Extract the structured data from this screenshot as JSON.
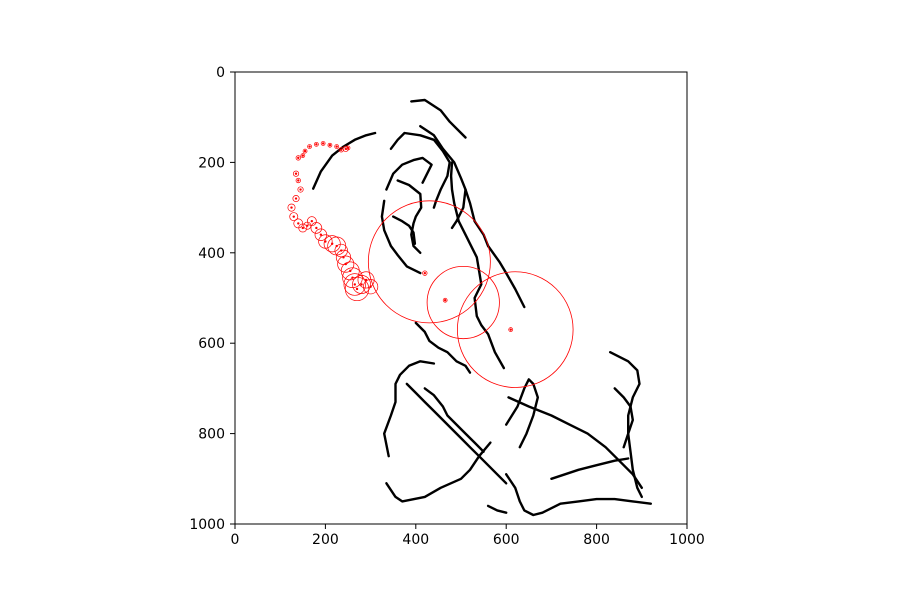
{
  "chart_data": {
    "type": "line",
    "title": "",
    "xlabel": "",
    "ylabel": "",
    "xlim": [
      0,
      1000
    ],
    "ylim": [
      1000,
      0
    ],
    "y_inverted": true,
    "grid": false,
    "x_ticks": [
      0,
      200,
      400,
      600,
      800,
      1000
    ],
    "y_ticks": [
      0,
      200,
      400,
      600,
      800,
      1000
    ],
    "x_tick_labels": [
      "0",
      "200",
      "400",
      "600",
      "800",
      "1000"
    ],
    "y_tick_labels": [
      "0",
      "200",
      "400",
      "600",
      "800",
      "1000"
    ],
    "series": [
      {
        "kind": "line",
        "color": "#000000",
        "segments": [
          [
            [
              173,
              258
            ],
            [
              190,
              220
            ],
            [
              215,
              185
            ],
            [
              240,
              165
            ],
            [
              265,
              150
            ],
            [
              290,
              140
            ],
            [
              310,
              135
            ]
          ],
          [
            [
              345,
              170
            ],
            [
              360,
              150
            ],
            [
              375,
              135
            ],
            [
              410,
              140
            ],
            [
              440,
              150
            ],
            [
              460,
              175
            ],
            [
              475,
              200
            ],
            [
              470,
              230
            ],
            [
              455,
              260
            ],
            [
              445,
              285
            ],
            [
              440,
              300
            ]
          ],
          [
            [
              390,
              65
            ],
            [
              420,
              62
            ],
            [
              455,
              85
            ],
            [
              475,
              110
            ],
            [
              500,
              135
            ],
            [
              510,
              145
            ]
          ],
          [
            [
              410,
              120
            ],
            [
              440,
              140
            ],
            [
              460,
              170
            ],
            [
              485,
              200
            ],
            [
              500,
              235
            ],
            [
              510,
              260
            ],
            [
              505,
              300
            ],
            [
              490,
              330
            ],
            [
              480,
              345
            ]
          ],
          [
            [
              335,
              260
            ],
            [
              350,
              225
            ],
            [
              370,
              205
            ],
            [
              395,
              195
            ],
            [
              415,
              190
            ],
            [
              435,
              205
            ],
            [
              425,
              225
            ],
            [
              415,
              245
            ]
          ],
          [
            [
              360,
              240
            ],
            [
              385,
              250
            ],
            [
              410,
              270
            ],
            [
              412,
              300
            ],
            [
              400,
              320
            ],
            [
              395,
              335
            ],
            [
              390,
              360
            ],
            [
              395,
              385
            ],
            [
              410,
              400
            ]
          ],
          [
            [
              330,
              285
            ],
            [
              325,
              320
            ],
            [
              330,
              350
            ],
            [
              345,
              385
            ],
            [
              360,
              405
            ],
            [
              380,
              430
            ],
            [
              410,
              445
            ]
          ],
          [
            [
              350,
              320
            ],
            [
              370,
              330
            ],
            [
              385,
              340
            ],
            [
              395,
              355
            ],
            [
              398,
              380
            ]
          ],
          [
            [
              480,
              200
            ],
            [
              478,
              230
            ],
            [
              480,
              260
            ],
            [
              485,
              290
            ],
            [
              495,
              330
            ],
            [
              510,
              360
            ],
            [
              525,
              390
            ],
            [
              535,
              410
            ],
            [
              540,
              440
            ]
          ],
          [
            [
              510,
              260
            ],
            [
              520,
              290
            ],
            [
              530,
              330
            ],
            [
              550,
              360
            ],
            [
              560,
              385
            ],
            [
              585,
              420
            ],
            [
              600,
              445
            ],
            [
              620,
              480
            ],
            [
              640,
              520
            ]
          ],
          [
            [
              540,
              440
            ],
            [
              545,
              470
            ],
            [
              530,
              500
            ],
            [
              535,
              540
            ],
            [
              545,
              560
            ],
            [
              560,
              580
            ],
            [
              575,
              620
            ],
            [
              595,
              655
            ]
          ],
          [
            [
              400,
              555
            ],
            [
              420,
              575
            ],
            [
              430,
              595
            ],
            [
              450,
              610
            ],
            [
              470,
              620
            ],
            [
              490,
              640
            ],
            [
              510,
              650
            ],
            [
              520,
              665
            ]
          ],
          [
            [
              340,
              850
            ],
            [
              330,
              800
            ],
            [
              345,
              760
            ],
            [
              355,
              730
            ],
            [
              355,
              690
            ],
            [
              365,
              670
            ],
            [
              385,
              650
            ],
            [
              410,
              640
            ],
            [
              440,
              645
            ]
          ],
          [
            [
              335,
              910
            ],
            [
              355,
              940
            ],
            [
              370,
              950
            ],
            [
              420,
              940
            ],
            [
              455,
              920
            ],
            [
              500,
              900
            ],
            [
              520,
              880
            ],
            [
              540,
              850
            ],
            [
              565,
              820
            ]
          ],
          [
            [
              600,
              780
            ],
            [
              625,
              740
            ],
            [
              640,
              700
            ],
            [
              650,
              680
            ],
            [
              660,
              690
            ],
            [
              670,
              720
            ],
            [
              660,
              760
            ],
            [
              645,
              800
            ],
            [
              630,
              830
            ]
          ],
          [
            [
              830,
              620
            ],
            [
              870,
              640
            ],
            [
              890,
              660
            ],
            [
              895,
              690
            ],
            [
              880,
              720
            ],
            [
              870,
              760
            ],
            [
              870,
              800
            ],
            [
              875,
              840
            ],
            [
              880,
              880
            ],
            [
              890,
              920
            ],
            [
              900,
              940
            ]
          ],
          [
            [
              605,
              720
            ],
            [
              650,
              740
            ],
            [
              700,
              760
            ],
            [
              740,
              780
            ],
            [
              780,
              800
            ],
            [
              820,
              830
            ],
            [
              850,
              860
            ],
            [
              880,
              890
            ],
            [
              900,
              920
            ]
          ],
          [
            [
              380,
              690
            ],
            [
              400,
              710
            ],
            [
              420,
              730
            ],
            [
              440,
              750
            ],
            [
              460,
              770
            ],
            [
              480,
              790
            ],
            [
              500,
              810
            ],
            [
              520,
              830
            ],
            [
              540,
              850
            ],
            [
              560,
              870
            ],
            [
              580,
              890
            ],
            [
              600,
              910
            ]
          ],
          [
            [
              420,
              700
            ],
            [
              440,
              715
            ],
            [
              460,
              740
            ],
            [
              470,
              760
            ],
            [
              490,
              780
            ],
            [
              510,
              800
            ],
            [
              530,
              820
            ],
            [
              550,
              840
            ]
          ],
          [
            [
              600,
              890
            ],
            [
              620,
              920
            ],
            [
              630,
              950
            ],
            [
              640,
              970
            ],
            [
              660,
              980
            ],
            [
              680,
              975
            ],
            [
              700,
              965
            ],
            [
              720,
              955
            ],
            [
              760,
              950
            ],
            [
              800,
              945
            ],
            [
              840,
              945
            ],
            [
              880,
              950
            ],
            [
              920,
              955
            ]
          ],
          [
            [
              560,
              960
            ],
            [
              580,
              970
            ],
            [
              600,
              975
            ]
          ],
          [
            [
              840,
              700
            ],
            [
              860,
              720
            ],
            [
              875,
              740
            ],
            [
              880,
              770
            ],
            [
              870,
              800
            ],
            [
              860,
              830
            ]
          ],
          [
            [
              700,
              900
            ],
            [
              730,
              890
            ],
            [
              760,
              880
            ],
            [
              800,
              870
            ],
            [
              840,
              860
            ],
            [
              870,
              855
            ]
          ]
        ]
      },
      {
        "kind": "circles",
        "color": "#ff0000",
        "points": [
          [
            135,
            225
          ],
          [
            140,
            190
          ],
          [
            150,
            185
          ],
          [
            155,
            175
          ],
          [
            165,
            165
          ],
          [
            180,
            160
          ],
          [
            195,
            158
          ],
          [
            210,
            162
          ],
          [
            225,
            165
          ],
          [
            235,
            172
          ],
          [
            245,
            170
          ],
          [
            250,
            168
          ],
          [
            140,
            240
          ],
          [
            145,
            260
          ],
          [
            135,
            280
          ],
          [
            125,
            300
          ],
          [
            130,
            320
          ],
          [
            140,
            335
          ],
          [
            150,
            345
          ],
          [
            160,
            340
          ],
          [
            170,
            330
          ],
          [
            180,
            345
          ],
          [
            190,
            360
          ],
          [
            200,
            375
          ],
          [
            215,
            380
          ],
          [
            225,
            385
          ],
          [
            235,
            395
          ],
          [
            240,
            410
          ],
          [
            245,
            425
          ],
          [
            255,
            440
          ],
          [
            260,
            455
          ],
          [
            265,
            470
          ],
          [
            270,
            480
          ],
          [
            280,
            470
          ],
          [
            290,
            460
          ],
          [
            300,
            475
          ],
          [
            420,
            445
          ],
          [
            465,
            505
          ],
          [
            610,
            570
          ]
        ],
        "radii": [
          6,
          5,
          4,
          4,
          4,
          4,
          4,
          4,
          4,
          5,
          6,
          4,
          5,
          6,
          7,
          8,
          9,
          10,
          9,
          8,
          10,
          12,
          13,
          15,
          18,
          20,
          14,
          16,
          18,
          20,
          22,
          24,
          26,
          20,
          18,
          16,
          5,
          3,
          3
        ],
        "big_circles": [
          [
            430,
            420,
            135
          ],
          [
            505,
            510,
            80
          ],
          [
            620,
            570,
            128
          ]
        ]
      }
    ]
  }
}
